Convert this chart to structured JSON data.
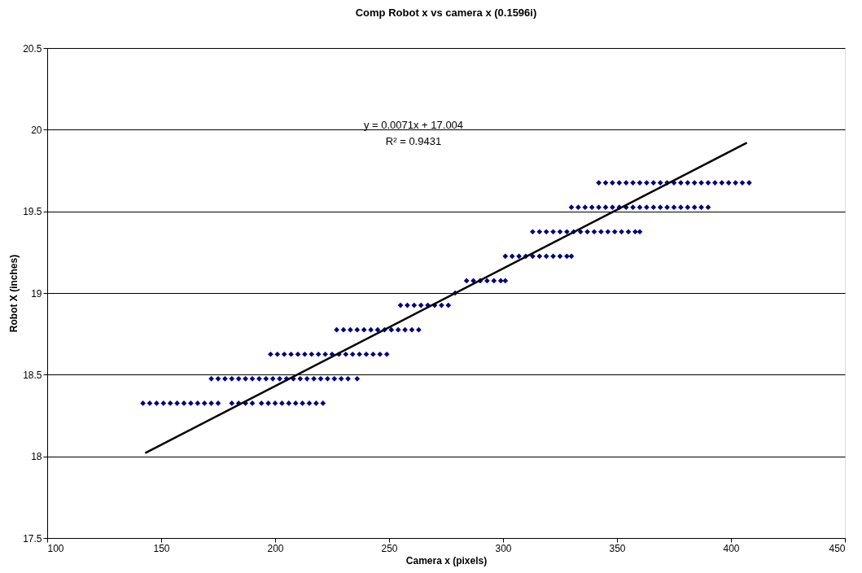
{
  "chart_data": {
    "type": "scatter",
    "title": "Comp Robot x vs camera x (0.1596i)",
    "xlabel": "Camera x (pixels)",
    "ylabel": "Robot X (inches)",
    "xlim": [
      100,
      450
    ],
    "xticks": [
      100,
      150,
      200,
      250,
      300,
      350,
      400,
      450
    ],
    "ylim": [
      17.5,
      20.5
    ],
    "yticks": [
      17.5,
      18,
      18.5,
      19,
      19.5,
      20,
      20.5
    ],
    "grid": "y",
    "marker": "diamond",
    "annotations": [
      "y = 0.0071x + 17.004",
      "R² = 0.9431"
    ],
    "series": [
      {
        "color": "#000080",
        "x": [
          142,
          145,
          148,
          151,
          154,
          157,
          160,
          163,
          166,
          169,
          172,
          175,
          181,
          184,
          187,
          190,
          194,
          197,
          200,
          203,
          206,
          209,
          212,
          215,
          218,
          221,
          172,
          175,
          178,
          181,
          184,
          187,
          190,
          193,
          196,
          199,
          202,
          205,
          208,
          211,
          214,
          217,
          220,
          223,
          226,
          229,
          232,
          236,
          198,
          201,
          204,
          207,
          210,
          213,
          216,
          219,
          222,
          225,
          228,
          231,
          234,
          237,
          240,
          243,
          246,
          249,
          227,
          230,
          233,
          236,
          239,
          242,
          245,
          248,
          251,
          254,
          257,
          260,
          263,
          255,
          258,
          261,
          264,
          267,
          270,
          273,
          276,
          279,
          284,
          287,
          290,
          293,
          296,
          299,
          301,
          301,
          304,
          307,
          310,
          313,
          316,
          319,
          322,
          325,
          328,
          330,
          313,
          316,
          319,
          322,
          325,
          328,
          331,
          334,
          337,
          340,
          343,
          346,
          349,
          352,
          355,
          358,
          360,
          330,
          333,
          336,
          339,
          342,
          345,
          348,
          351,
          354,
          357,
          360,
          363,
          366,
          369,
          372,
          375,
          378,
          381,
          384,
          387,
          390,
          342,
          345,
          348,
          351,
          354,
          357,
          360,
          363,
          366,
          369,
          372,
          375,
          378,
          381,
          384,
          387,
          390,
          393,
          396,
          399,
          402,
          405,
          408
        ],
        "values": [
          18.325,
          18.325,
          18.325,
          18.325,
          18.325,
          18.325,
          18.325,
          18.325,
          18.325,
          18.325,
          18.325,
          18.325,
          18.325,
          18.325,
          18.325,
          18.325,
          18.325,
          18.325,
          18.325,
          18.325,
          18.325,
          18.325,
          18.325,
          18.325,
          18.325,
          18.325,
          18.475,
          18.475,
          18.475,
          18.475,
          18.475,
          18.475,
          18.475,
          18.475,
          18.475,
          18.475,
          18.475,
          18.475,
          18.475,
          18.475,
          18.475,
          18.475,
          18.475,
          18.475,
          18.475,
          18.475,
          18.475,
          18.475,
          18.625,
          18.625,
          18.625,
          18.625,
          18.625,
          18.625,
          18.625,
          18.625,
          18.625,
          18.625,
          18.625,
          18.625,
          18.625,
          18.625,
          18.625,
          18.625,
          18.625,
          18.625,
          18.775,
          18.775,
          18.775,
          18.775,
          18.775,
          18.775,
          18.775,
          18.775,
          18.775,
          18.775,
          18.775,
          18.775,
          18.775,
          18.925,
          18.925,
          18.925,
          18.925,
          18.925,
          18.925,
          18.925,
          18.925,
          19.0,
          19.075,
          19.075,
          19.075,
          19.075,
          19.075,
          19.075,
          19.075,
          19.225,
          19.225,
          19.225,
          19.225,
          19.225,
          19.225,
          19.225,
          19.225,
          19.225,
          19.225,
          19.225,
          19.375,
          19.375,
          19.375,
          19.375,
          19.375,
          19.375,
          19.375,
          19.375,
          19.375,
          19.375,
          19.375,
          19.375,
          19.375,
          19.375,
          19.375,
          19.375,
          19.375,
          19.525,
          19.525,
          19.525,
          19.525,
          19.525,
          19.525,
          19.525,
          19.525,
          19.525,
          19.525,
          19.525,
          19.525,
          19.525,
          19.525,
          19.525,
          19.525,
          19.525,
          19.525,
          19.525,
          19.525,
          19.525,
          19.675,
          19.675,
          19.675,
          19.675,
          19.675,
          19.675,
          19.675,
          19.675,
          19.675,
          19.675,
          19.675,
          19.675,
          19.675,
          19.675,
          19.675,
          19.675,
          19.675,
          19.675,
          19.675,
          19.675,
          19.675,
          19.675,
          19.675
        ]
      },
      {
        "type": "line",
        "marker": "none",
        "color": "#000000",
        "x": [
          143,
          407
        ],
        "values": [
          18.02,
          19.92
        ]
      }
    ]
  }
}
